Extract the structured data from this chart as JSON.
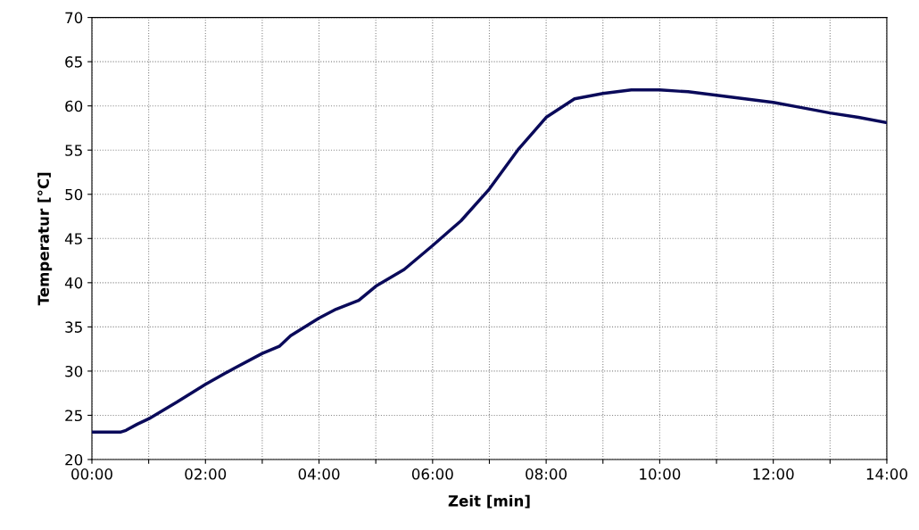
{
  "chart_data": {
    "type": "line",
    "xlabel": "Zeit [min]",
    "ylabel": "Temperatur [°C]",
    "x": [
      0,
      0.3,
      0.5,
      0.6,
      0.8,
      1.0,
      1.5,
      2.0,
      2.5,
      3.0,
      3.3,
      3.5,
      4.0,
      4.3,
      4.7,
      5.0,
      5.5,
      6.0,
      6.5,
      7.0,
      7.5,
      8.0,
      8.5,
      9.0,
      9.5,
      10.0,
      10.5,
      11.0,
      11.5,
      12.0,
      12.5,
      13.0,
      13.5,
      14.0
    ],
    "series": [
      {
        "color": "#0a0a5a",
        "values": [
          23.1,
          23.1,
          23.1,
          23.3,
          24.0,
          24.6,
          26.5,
          28.5,
          30.3,
          32.0,
          32.8,
          34.0,
          36.0,
          37.0,
          38.0,
          39.6,
          41.5,
          44.2,
          47.0,
          50.6,
          55.0,
          58.7,
          60.8,
          61.4,
          61.8,
          61.8,
          61.6,
          61.2,
          60.8,
          60.4,
          59.8,
          59.2,
          58.7,
          58.1
        ]
      }
    ],
    "xlim": [
      0,
      14
    ],
    "ylim": [
      20,
      70
    ],
    "xticks": [
      {
        "value": 0,
        "label": "00:00"
      },
      {
        "value": 1,
        "label": null
      },
      {
        "value": 2,
        "label": "02:00"
      },
      {
        "value": 3,
        "label": null
      },
      {
        "value": 4,
        "label": "04:00"
      },
      {
        "value": 5,
        "label": null
      },
      {
        "value": 6,
        "label": "06:00"
      },
      {
        "value": 7,
        "label": null
      },
      {
        "value": 8,
        "label": "08:00"
      },
      {
        "value": 9,
        "label": null
      },
      {
        "value": 10,
        "label": "10:00"
      },
      {
        "value": 11,
        "label": null
      },
      {
        "value": 12,
        "label": "12:00"
      },
      {
        "value": 13,
        "label": null
      },
      {
        "value": 14,
        "label": "14:00"
      }
    ],
    "yticks": [
      20,
      25,
      30,
      35,
      40,
      45,
      50,
      55,
      60,
      65,
      70
    ],
    "grid": true,
    "marker": "none",
    "line_style": "solid"
  }
}
